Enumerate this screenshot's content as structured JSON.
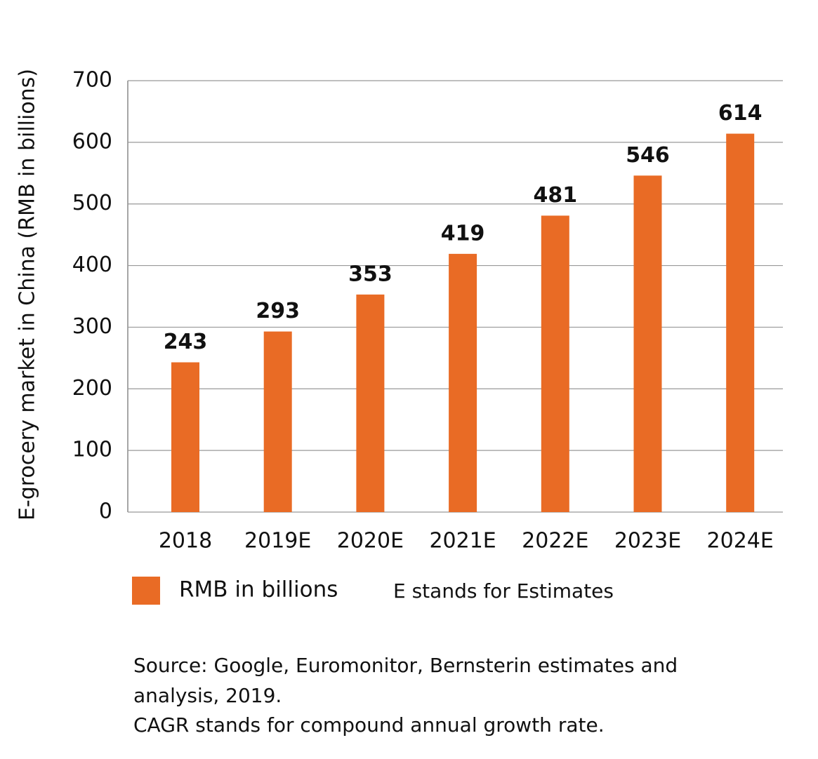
{
  "chart_data": {
    "type": "bar",
    "y_label": "E-grocery market in China (RMB in billions)",
    "categories": [
      "2018",
      "2019E",
      "2020E",
      "2021E",
      "2022E",
      "2023E",
      "2024E"
    ],
    "series": [
      {
        "name": "RMB in billions",
        "color": "#e96b25",
        "values": [
          243,
          293,
          353,
          419,
          481,
          546,
          614
        ]
      }
    ],
    "ylim": [
      0,
      700
    ],
    "yticks": [
      0,
      100,
      200,
      300,
      400,
      500,
      600,
      700
    ],
    "grid": true,
    "legend": "bottom",
    "note": "E stands for Estimates",
    "source": [
      "Source: Google, Euromonitor, Bernsterin estimates and",
      "analysis, 2019.",
      "CAGR stands for compound annual growth rate."
    ]
  }
}
